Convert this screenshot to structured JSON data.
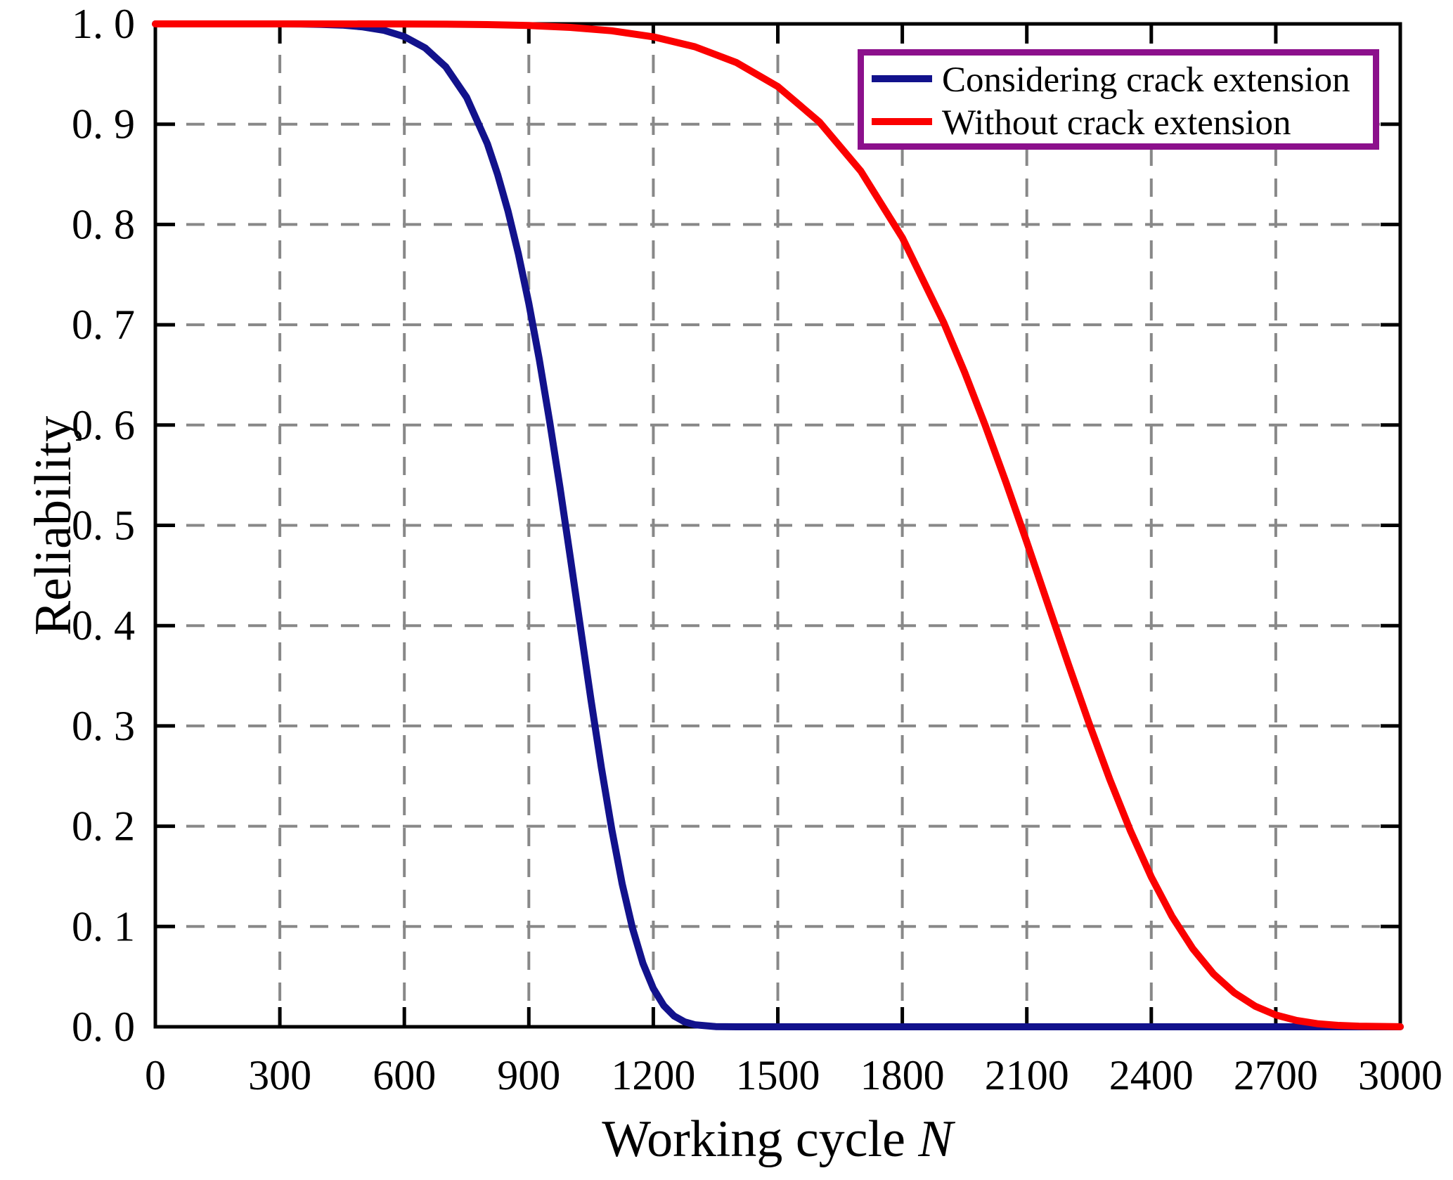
{
  "figure": {
    "background": "#ffffff",
    "axis_color": "#000000",
    "xlabel_prefix": "Working cycle ",
    "xlabel_italic": "N",
    "ylabel": "Reliability",
    "legend": {
      "border_color": "#8c108c",
      "fill": "#ffffff"
    }
  },
  "chart_data": {
    "type": "line",
    "title": "",
    "xlabel": "Working cycle N",
    "ylabel": "Reliability",
    "xlim": [
      0,
      3000
    ],
    "ylim": [
      0.0,
      1.0
    ],
    "grid": "dashed",
    "grid_color": "#888888",
    "legend_position": "top-right",
    "x_ticks": [
      {
        "v": 0,
        "label": "0"
      },
      {
        "v": 300,
        "label": "300"
      },
      {
        "v": 600,
        "label": "600"
      },
      {
        "v": 900,
        "label": "900"
      },
      {
        "v": 1200,
        "label": "1200"
      },
      {
        "v": 1500,
        "label": "1500"
      },
      {
        "v": 1800,
        "label": "1800"
      },
      {
        "v": 2100,
        "label": "2100"
      },
      {
        "v": 2400,
        "label": "2400"
      },
      {
        "v": 2700,
        "label": "2700"
      },
      {
        "v": 3000,
        "label": "3000"
      }
    ],
    "y_ticks": [
      {
        "v": 1.0,
        "label": "1. 0"
      },
      {
        "v": 0.9,
        "label": "0. 9"
      },
      {
        "v": 0.8,
        "label": "0. 8"
      },
      {
        "v": 0.7,
        "label": "0. 7"
      },
      {
        "v": 0.6,
        "label": "0. 6"
      },
      {
        "v": 0.5,
        "label": "0. 5"
      },
      {
        "v": 0.4,
        "label": "0. 4"
      },
      {
        "v": 0.3,
        "label": "0. 3"
      },
      {
        "v": 0.2,
        "label": "0. 2"
      },
      {
        "v": 0.1,
        "label": "0. 1"
      },
      {
        "v": 0.0,
        "label": "0. 0"
      }
    ],
    "series": [
      {
        "name": "Considering crack extension",
        "color": "#12128c",
        "points": [
          [
            0,
            1
          ],
          [
            100,
            1
          ],
          [
            200,
            1
          ],
          [
            300,
            1
          ],
          [
            350,
            0.9999
          ],
          [
            400,
            0.9995
          ],
          [
            450,
            0.9988
          ],
          [
            500,
            0.997
          ],
          [
            550,
            0.9937
          ],
          [
            600,
            0.9873
          ],
          [
            650,
            0.9761
          ],
          [
            700,
            0.9572
          ],
          [
            750,
            0.9268
          ],
          [
            800,
            0.8805
          ],
          [
            825,
            0.8496
          ],
          [
            850,
            0.813
          ],
          [
            875,
            0.7704
          ],
          [
            900,
            0.7212
          ],
          [
            925,
            0.6657
          ],
          [
            950,
            0.6041
          ],
          [
            975,
            0.5379
          ],
          [
            1000,
            0.468
          ],
          [
            1025,
            0.3965
          ],
          [
            1050,
            0.3256
          ],
          [
            1075,
            0.2581
          ],
          [
            1100,
            0.1964
          ],
          [
            1125,
            0.1425
          ],
          [
            1150,
            0.098
          ],
          [
            1175,
            0.0633
          ],
          [
            1200,
            0.0382
          ],
          [
            1225,
            0.0212
          ],
          [
            1250,
            0.0108
          ],
          [
            1275,
            0.005
          ],
          [
            1300,
            0.002
          ],
          [
            1350,
            0.0002
          ],
          [
            1400,
            0
          ],
          [
            1700,
            0
          ],
          [
            2200,
            0
          ],
          [
            2600,
            0
          ],
          [
            3000,
            0
          ]
        ]
      },
      {
        "name": "Without crack extension",
        "color": "#fb0000",
        "points": [
          [
            0,
            1
          ],
          [
            300,
            1
          ],
          [
            600,
            0.9999
          ],
          [
            700,
            0.9997
          ],
          [
            800,
            0.9993
          ],
          [
            900,
            0.9984
          ],
          [
            1000,
            0.9965
          ],
          [
            1100,
            0.9931
          ],
          [
            1200,
            0.9871
          ],
          [
            1300,
            0.9772
          ],
          [
            1400,
            0.9615
          ],
          [
            1500,
            0.9375
          ],
          [
            1600,
            0.9023
          ],
          [
            1700,
            0.8532
          ],
          [
            1800,
            0.7869
          ],
          [
            1900,
            0.702
          ],
          [
            1950,
            0.6527
          ],
          [
            2000,
            0.5994
          ],
          [
            2050,
            0.5427
          ],
          [
            2100,
            0.4833
          ],
          [
            2150,
            0.4225
          ],
          [
            2200,
            0.3618
          ],
          [
            2250,
            0.3026
          ],
          [
            2300,
            0.2466
          ],
          [
            2350,
            0.1951
          ],
          [
            2400,
            0.1493
          ],
          [
            2450,
            0.11
          ],
          [
            2500,
            0.0779
          ],
          [
            2550,
            0.0527
          ],
          [
            2600,
            0.0339
          ],
          [
            2650,
            0.0206
          ],
          [
            2700,
            0.0118
          ],
          [
            2750,
            0.0063
          ],
          [
            2800,
            0.0031
          ],
          [
            2850,
            0.0014
          ],
          [
            2900,
            0.0006
          ],
          [
            3000,
            0.0001
          ]
        ]
      }
    ]
  }
}
